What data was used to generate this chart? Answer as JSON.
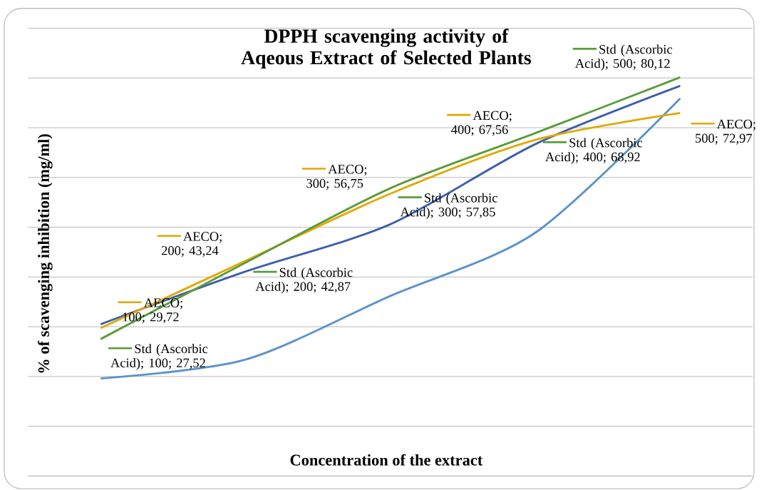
{
  "chart_data": {
    "type": "line",
    "title": "DPPH scavenging activity of  Aqeous Extract of Selected Plants",
    "xlabel": "Concentration of the extract",
    "ylabel": "% of scavenging inhibition (mg/ml)",
    "categories": [
      null,
      null,
      null,
      null,
      null
    ],
    "series": [
      {
        "color": "#3c5fad",
        "values": [
          30.5,
          41.1,
          50.6,
          66.7,
          78.4
        ]
      },
      {
        "color": "#5b93c9",
        "values": [
          19.6,
          23.4,
          36.2,
          48.9,
          75.9
        ]
      },
      {
        "color": "#e2a800",
        "values": [
          29.72,
          43.24,
          56.75,
          67.56,
          72.97
        ],
        "value_labels": [
          "AECO; 100; 29,72",
          "AECO; 200; 43,24",
          "AECO; 300; 56,75",
          "AECO; 400; 67,56",
          "AECO; 500; 72,97"
        ]
      },
      {
        "color": "#5b9b3a",
        "values": [
          27.52,
          42.87,
          57.85,
          68.92,
          80.12
        ],
        "value_labels": [
          "Std (Ascorbic Acid); 100; 27,52",
          "Std (Ascorbic Acid); 200; 42,87",
          "Std (Ascorbic Acid); 300; 57,85",
          "Std (Ascorbic Acid); 400; 68,92",
          "Std (Ascorbic Acid); 500; 80,12"
        ]
      }
    ],
    "ylim": [
      0,
      90
    ],
    "yticks": [
      {
        "value": 0,
        "label": null
      },
      {
        "value": 10,
        "label": null
      },
      {
        "value": 20,
        "label": null
      },
      {
        "value": 30,
        "label": null
      },
      {
        "value": 40,
        "label": null
      },
      {
        "value": 50,
        "label": null
      },
      {
        "value": 60,
        "label": null
      },
      {
        "value": 70,
        "label": null
      },
      {
        "value": 80,
        "label": null
      },
      {
        "value": 90,
        "label": null
      }
    ],
    "grid": "y"
  }
}
